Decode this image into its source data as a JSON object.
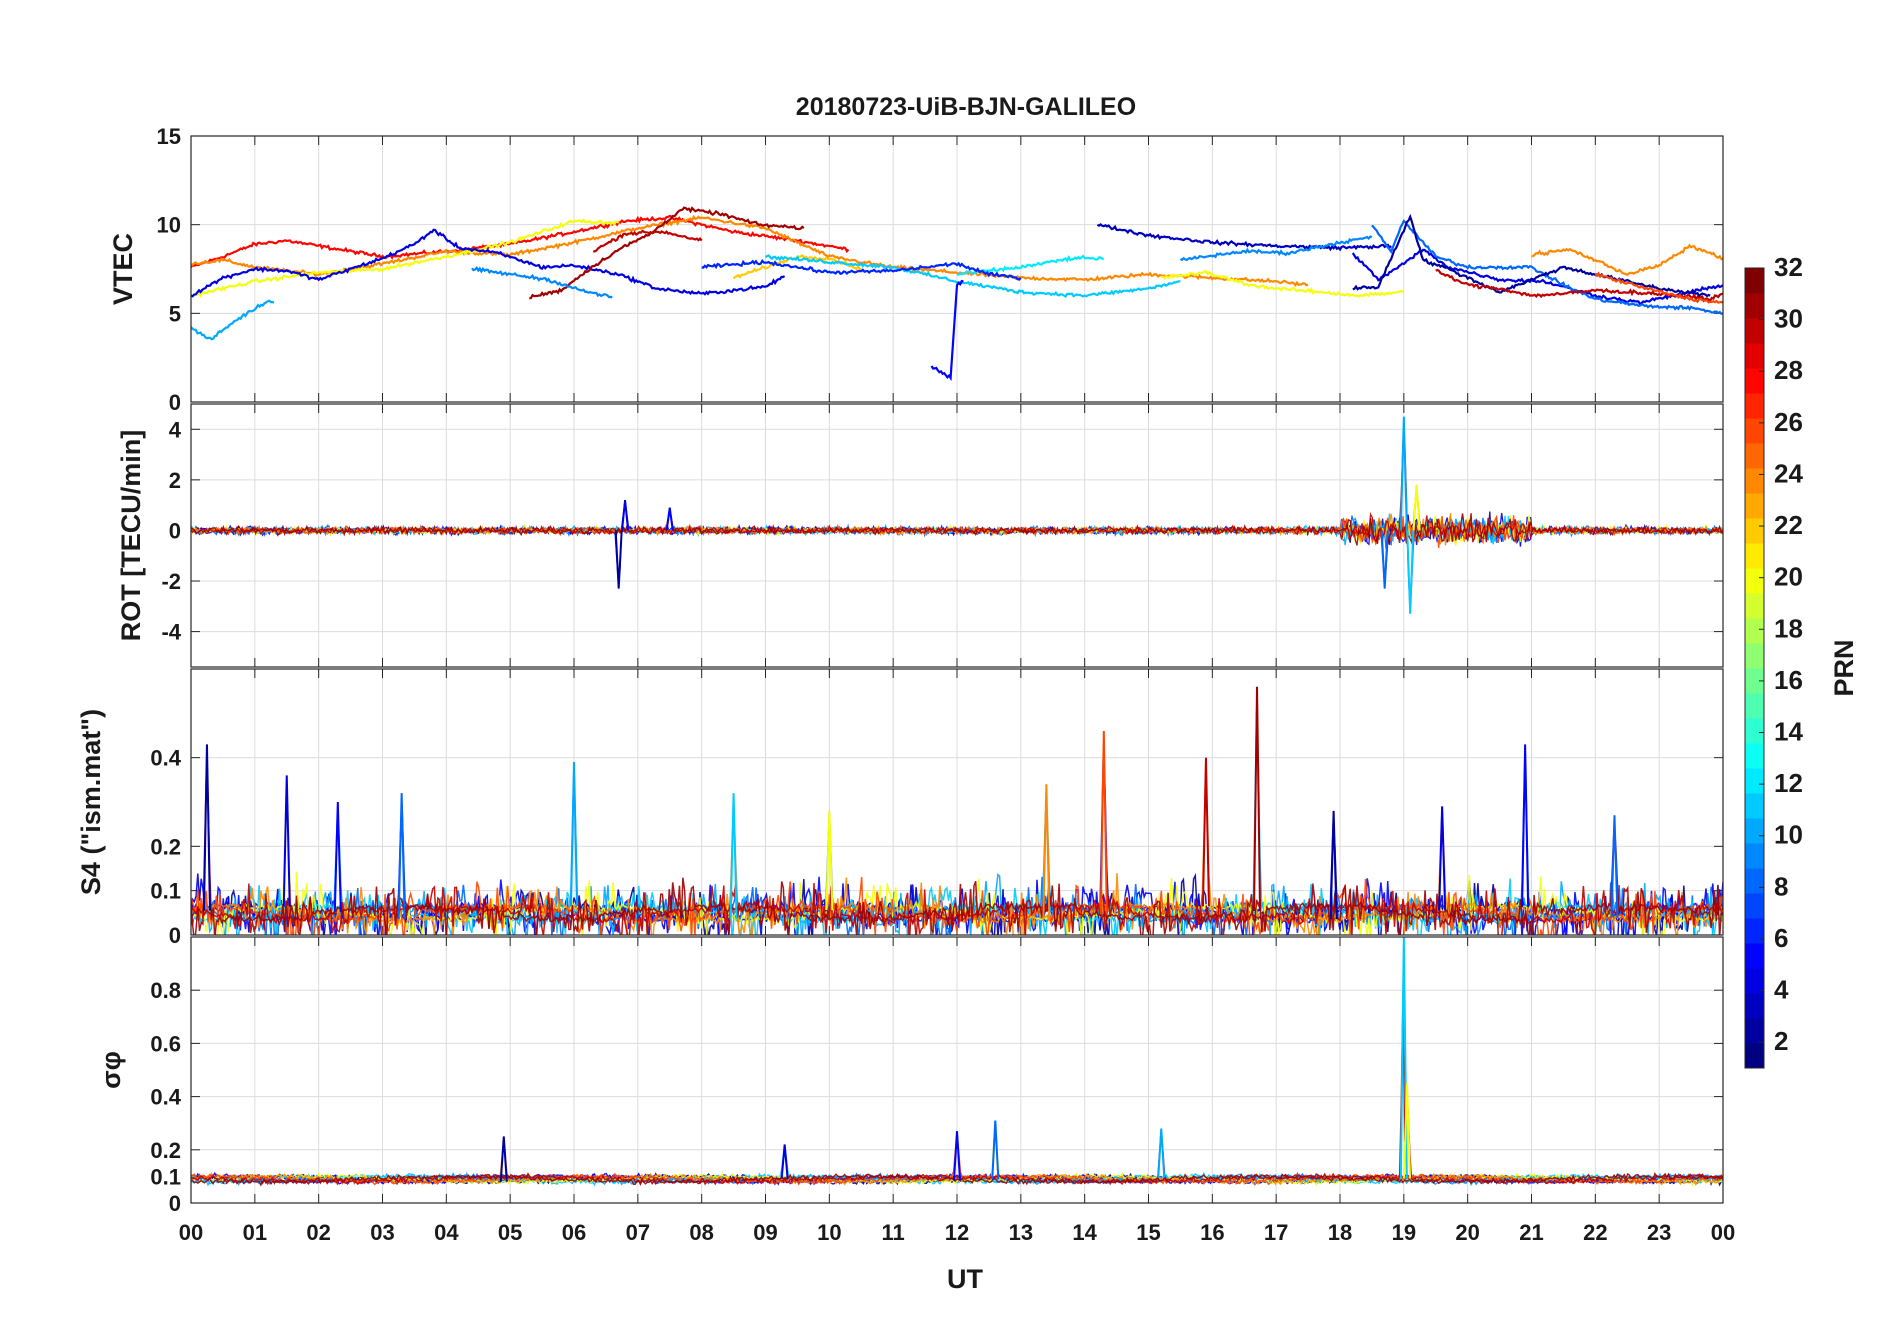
{
  "title": "20180723-UiB-BJN-GALILEO",
  "x_axis": {
    "label": "UT",
    "ticks": [
      "00",
      "01",
      "02",
      "03",
      "04",
      "05",
      "06",
      "07",
      "08",
      "09",
      "10",
      "11",
      "12",
      "13",
      "14",
      "15",
      "16",
      "17",
      "18",
      "19",
      "20",
      "21",
      "22",
      "23",
      "00"
    ]
  },
  "colorbar": {
    "label": "PRN",
    "colormap": "jet",
    "range": [
      1,
      32
    ],
    "ticks": [
      "2",
      "4",
      "6",
      "8",
      "10",
      "12",
      "14",
      "16",
      "18",
      "20",
      "22",
      "24",
      "26",
      "28",
      "30",
      "32"
    ]
  },
  "chart_data": [
    {
      "id": "vtec",
      "type": "line",
      "ylabel": "VTEC",
      "ylim": [
        0,
        15
      ],
      "yticks": [
        "0",
        "5",
        "10",
        "15"
      ],
      "xlim_hours": [
        0,
        24
      ],
      "series": [
        {
          "prn": 28,
          "points": [
            [
              0,
              7.6
            ],
            [
              0.5,
              8.2
            ],
            [
              1,
              8.9
            ],
            [
              1.5,
              9.1
            ],
            [
              2,
              8.8
            ],
            [
              3,
              8.2
            ],
            [
              4,
              8.5
            ],
            [
              5,
              8.9
            ],
            [
              6,
              9.6
            ],
            [
              6.8,
              10.2
            ],
            [
              7.5,
              10.4
            ],
            [
              8.5,
              9.6
            ],
            [
              9.5,
              9.1
            ],
            [
              10.3,
              8.6
            ]
          ]
        },
        {
          "prn": 24,
          "points": [
            [
              0,
              7.8
            ],
            [
              0.5,
              8.0
            ],
            [
              1,
              7.6
            ],
            [
              2,
              7.2
            ],
            [
              3,
              7.8
            ],
            [
              4,
              8.5
            ],
            [
              5,
              8.3
            ],
            [
              6,
              9.0
            ],
            [
              7,
              9.8
            ],
            [
              8,
              10.4
            ],
            [
              9,
              9.8
            ],
            [
              10,
              8.2
            ],
            [
              11,
              7.6
            ],
            [
              12,
              7.3
            ],
            [
              13,
              7.0
            ],
            [
              14,
              6.9
            ],
            [
              15,
              7.2
            ],
            [
              16,
              7.0
            ],
            [
              17,
              6.8
            ],
            [
              17.5,
              6.6
            ]
          ]
        },
        {
          "prn": 20,
          "points": [
            [
              0,
              6.0
            ],
            [
              1,
              6.8
            ],
            [
              2,
              7.3
            ],
            [
              3,
              7.5
            ],
            [
              4,
              8.2
            ],
            [
              5,
              9.0
            ],
            [
              5.5,
              9.6
            ],
            [
              6,
              10.2
            ],
            [
              6.7,
              10.1
            ]
          ]
        },
        {
          "prn": 10,
          "points": [
            [
              0,
              4.2
            ],
            [
              0.3,
              3.5
            ],
            [
              0.7,
              4.6
            ],
            [
              1.2,
              5.7
            ],
            [
              1.3,
              5.6
            ]
          ]
        },
        {
          "prn": 4,
          "points": [
            [
              0,
              6.0
            ],
            [
              0.5,
              7.0
            ],
            [
              1,
              7.5
            ],
            [
              1.5,
              7.4
            ],
            [
              2,
              6.9
            ],
            [
              3,
              8.1
            ],
            [
              3.5,
              8.9
            ],
            [
              3.8,
              9.7
            ],
            [
              4.2,
              8.7
            ],
            [
              4.8,
              8.4
            ],
            [
              5.5,
              7.6
            ],
            [
              6,
              7.7
            ],
            [
              6.7,
              7.2
            ],
            [
              7.3,
              6.4
            ],
            [
              8,
              6.1
            ],
            [
              9,
              6.5
            ],
            [
              9.3,
              7.1
            ]
          ]
        },
        {
          "prn": 31,
          "points": [
            [
              5.3,
              5.9
            ],
            [
              5.8,
              6.3
            ],
            [
              6.2,
              7.4
            ],
            [
              6.7,
              8.6
            ],
            [
              7.2,
              9.5
            ],
            [
              7.7,
              10.9
            ],
            [
              8.3,
              10.6
            ],
            [
              8.9,
              10.0
            ],
            [
              9.6,
              9.8
            ]
          ]
        },
        {
          "prn": 30,
          "points": [
            [
              6.3,
              8.5
            ],
            [
              6.8,
              9.5
            ],
            [
              7.4,
              9.6
            ],
            [
              8,
              9.1
            ]
          ]
        },
        {
          "prn": 9,
          "points": [
            [
              4.4,
              7.5
            ],
            [
              5,
              7.2
            ],
            [
              5.6,
              6.9
            ],
            [
              6.1,
              6.3
            ],
            [
              6.6,
              5.9
            ]
          ]
        },
        {
          "prn": 22,
          "points": [
            [
              8.5,
              7.0
            ],
            [
              9,
              7.6
            ],
            [
              9.5,
              8.2
            ],
            [
              10,
              8.1
            ],
            [
              10.5,
              7.5
            ]
          ]
        },
        {
          "prn": 11,
          "points": [
            [
              9,
              8.2
            ],
            [
              10,
              7.9
            ],
            [
              11,
              7.6
            ],
            [
              12,
              6.8
            ],
            [
              13,
              6.2
            ],
            [
              14,
              6.0
            ],
            [
              15,
              6.4
            ],
            [
              15.5,
              6.8
            ]
          ]
        },
        {
          "prn": 12,
          "points": [
            [
              12,
              7.2
            ],
            [
              13,
              7.6
            ],
            [
              13.8,
              8.1
            ],
            [
              14.3,
              8.1
            ]
          ]
        },
        {
          "prn": 6,
          "points": [
            [
              8,
              7.6
            ],
            [
              9,
              7.9
            ],
            [
              10,
              7.3
            ],
            [
              11,
              7.4
            ],
            [
              12,
              7.8
            ],
            [
              12.5,
              7.2
            ],
            [
              13,
              7.0
            ]
          ]
        },
        {
          "prn": 5,
          "points": [
            [
              11.6,
              2.0
            ],
            [
              11.9,
              1.4
            ],
            [
              12.0,
              6.6
            ],
            [
              12.1,
              6.8
            ]
          ]
        },
        {
          "prn": 3,
          "points": [
            [
              14.2,
              10.0
            ],
            [
              15,
              9.4
            ],
            [
              16,
              9.0
            ],
            [
              17,
              8.8
            ],
            [
              18,
              8.7
            ],
            [
              18.8,
              8.8
            ]
          ]
        },
        {
          "prn": 9,
          "points": [
            [
              15.5,
              8.0
            ],
            [
              16.5,
              8.5
            ],
            [
              17.2,
              8.4
            ],
            [
              18,
              9.0
            ],
            [
              18.5,
              9.3
            ]
          ]
        },
        {
          "prn": 20,
          "points": [
            [
              15.2,
              7.0
            ],
            [
              15.9,
              7.3
            ],
            [
              16.6,
              6.6
            ],
            [
              17,
              6.4
            ],
            [
              17.7,
              6.2
            ],
            [
              18.3,
              6.0
            ],
            [
              19,
              6.2
            ]
          ]
        },
        {
          "prn": 4,
          "points": [
            [
              18.2,
              8.4
            ],
            [
              18.6,
              6.9
            ],
            [
              19,
              7.8
            ],
            [
              19.3,
              8.6
            ],
            [
              19.7,
              7.6
            ],
            [
              20.5,
              6.9
            ],
            [
              21.2,
              6.8
            ],
            [
              22,
              6.0
            ],
            [
              22.7,
              5.6
            ],
            [
              23.5,
              6.2
            ],
            [
              24,
              6.6
            ]
          ]
        },
        {
          "prn": 8,
          "points": [
            [
              18.5,
              10.0
            ],
            [
              18.8,
              8.5
            ],
            [
              19,
              10.2
            ],
            [
              19.5,
              8.2
            ],
            [
              20,
              7.6
            ],
            [
              21,
              7.6
            ],
            [
              21.5,
              6.6
            ],
            [
              22,
              5.8
            ],
            [
              22.8,
              5.4
            ],
            [
              23.5,
              5.3
            ],
            [
              24,
              5.0
            ]
          ]
        },
        {
          "prn": 2,
          "points": [
            [
              18.2,
              6.4
            ],
            [
              18.6,
              6.5
            ],
            [
              19.1,
              10.5
            ],
            [
              19.3,
              8.0
            ],
            [
              19.7,
              7.5
            ],
            [
              20.5,
              6.2
            ],
            [
              21.5,
              7.6
            ],
            [
              22,
              7.2
            ],
            [
              23,
              6.4
            ],
            [
              23.8,
              6.0
            ]
          ]
        },
        {
          "prn": 30,
          "points": [
            [
              19.5,
              7.4
            ],
            [
              20,
              6.6
            ],
            [
              20.5,
              6.4
            ],
            [
              21,
              6.0
            ],
            [
              21.5,
              6.1
            ],
            [
              22,
              6.3
            ],
            [
              23,
              6.1
            ],
            [
              23.8,
              5.8
            ],
            [
              24,
              6.1
            ]
          ]
        },
        {
          "prn": 24,
          "points": [
            [
              21,
              8.3
            ],
            [
              21.6,
              8.6
            ],
            [
              22,
              8.0
            ],
            [
              22.5,
              7.2
            ],
            [
              23,
              7.7
            ],
            [
              23.5,
              8.8
            ],
            [
              24,
              8.1
            ]
          ]
        },
        {
          "prn": 26,
          "points": [
            [
              22,
              7.2
            ],
            [
              22.8,
              6.4
            ],
            [
              23.5,
              5.8
            ],
            [
              24,
              5.6
            ]
          ]
        }
      ]
    },
    {
      "id": "rot",
      "type": "line",
      "ylabel": "ROT [TECU/min]",
      "ylim": [
        -5.4,
        5
      ],
      "yticks": [
        "-4",
        "-2",
        "0",
        "2",
        "4"
      ],
      "xlim_hours": [
        0,
        24
      ],
      "notable_peaks": [
        [
          6.7,
          -2.3
        ],
        [
          6.8,
          1.2
        ],
        [
          7.5,
          0.9
        ],
        [
          18.7,
          -2.3
        ],
        [
          19.0,
          4.5
        ],
        [
          19.1,
          -3.3
        ],
        [
          19.2,
          1.8
        ]
      ]
    },
    {
      "id": "s4",
      "type": "line",
      "ylabel": "S4 (\"ism.mat\")",
      "ylim": [
        0,
        0.6
      ],
      "yticks": [
        "0",
        "0.1",
        "0.2",
        "0.4"
      ],
      "xlim_hours": [
        0,
        24
      ],
      "notable_peaks": [
        [
          0.25,
          0.43
        ],
        [
          1.5,
          0.36
        ],
        [
          2.3,
          0.3
        ],
        [
          3.3,
          0.32
        ],
        [
          6.0,
          0.39
        ],
        [
          8.5,
          0.32
        ],
        [
          10.0,
          0.28
        ],
        [
          13.4,
          0.34
        ],
        [
          14.3,
          0.46
        ],
        [
          15.9,
          0.4
        ],
        [
          16.7,
          0.56
        ],
        [
          17.9,
          0.28
        ],
        [
          19.6,
          0.29
        ],
        [
          20.9,
          0.43
        ],
        [
          22.3,
          0.27
        ]
      ]
    },
    {
      "id": "sigma_phi",
      "type": "line",
      "ylabel": "σφ",
      "ylim": [
        0,
        1
      ],
      "yticks": [
        "0",
        "0.1",
        "0.2",
        "0.4",
        "0.6",
        "0.8"
      ],
      "xlim_hours": [
        0,
        24
      ],
      "notable_peaks": [
        [
          4.9,
          0.25
        ],
        [
          9.3,
          0.22
        ],
        [
          12.0,
          0.27
        ],
        [
          12.6,
          0.31
        ],
        [
          15.2,
          0.28
        ],
        [
          19.0,
          1.0
        ],
        [
          19.05,
          0.45
        ]
      ]
    }
  ]
}
